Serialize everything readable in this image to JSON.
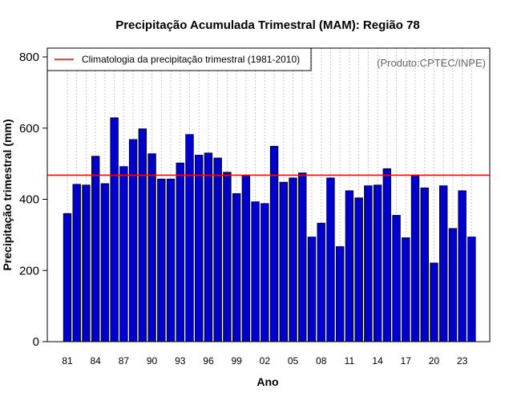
{
  "chart_data": {
    "type": "bar",
    "title": "Precipitação Acumulada Trimestral (MAM): Região 78",
    "xlabel": "Ano",
    "ylabel": "Precipitação trimestral (mm)",
    "ylim": [
      0,
      800
    ],
    "yticks": [
      0,
      200,
      400,
      600,
      800
    ],
    "x": [
      1981,
      1982,
      1983,
      1984,
      1985,
      1986,
      1987,
      1988,
      1989,
      1990,
      1991,
      1992,
      1993,
      1994,
      1995,
      1996,
      1997,
      1998,
      1999,
      2000,
      2001,
      2002,
      2003,
      2004,
      2005,
      2006,
      2007,
      2008,
      2009,
      2010,
      2011,
      2012,
      2013,
      2014,
      2015,
      2016,
      2017,
      2018,
      2019,
      2020,
      2021,
      2022,
      2023,
      2024
    ],
    "xticks": [
      "81",
      "84",
      "87",
      "90",
      "93",
      "96",
      "99",
      "02",
      "05",
      "08",
      "11",
      "14",
      "17",
      "20",
      "23"
    ],
    "values": [
      360,
      442,
      440,
      521,
      444,
      629,
      492,
      568,
      598,
      528,
      457,
      457,
      502,
      582,
      524,
      530,
      516,
      476,
      416,
      467,
      393,
      388,
      549,
      448,
      460,
      474,
      294,
      333,
      460,
      267,
      424,
      404,
      438,
      440,
      486,
      355,
      292,
      467,
      432,
      221,
      438,
      318,
      424,
      294
    ],
    "bar_color": "#0000cd",
    "climatology": {
      "value": 468,
      "label": "Climatologia da precipitação trimestral (1981-2010)",
      "color": "#ff0000"
    },
    "legend_position": "top-left",
    "annotation": "(Produto:CPTEC/INPE)",
    "grid": "vertical-dotted"
  }
}
